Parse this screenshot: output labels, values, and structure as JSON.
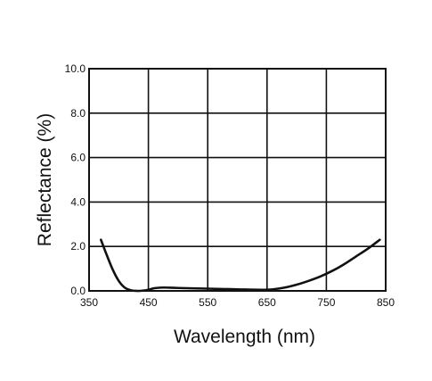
{
  "chart_data": {
    "type": "line",
    "title": "",
    "xlabel": "Wavelength (nm)",
    "ylabel": "Reflectance (%)",
    "xlim": [
      350,
      850
    ],
    "ylim": [
      0,
      10
    ],
    "x_ticks": [
      "350",
      "450",
      "550",
      "650",
      "750",
      "850"
    ],
    "y_ticks": [
      "0.0",
      "2.0",
      "4.0",
      "6.0",
      "8.0",
      "10.0"
    ],
    "x_tick_values": [
      350,
      450,
      550,
      650,
      750,
      850
    ],
    "y_tick_values": [
      0,
      2,
      4,
      6,
      8,
      10
    ],
    "grid": true,
    "legend": "none",
    "line_color": "#111111",
    "series": [
      {
        "x": [
          370,
          380,
          390,
          400,
          410,
          420,
          430,
          440,
          450,
          460,
          475,
          500,
          550,
          600,
          640,
          660,
          680,
          700,
          720,
          740,
          760,
          780,
          800,
          820,
          840
        ],
        "y": [
          2.3,
          1.6,
          0.95,
          0.45,
          0.15,
          0.03,
          0.0,
          0.01,
          0.05,
          0.12,
          0.15,
          0.13,
          0.1,
          0.07,
          0.05,
          0.07,
          0.15,
          0.28,
          0.45,
          0.65,
          0.9,
          1.2,
          1.55,
          1.9,
          2.3
        ]
      }
    ]
  }
}
